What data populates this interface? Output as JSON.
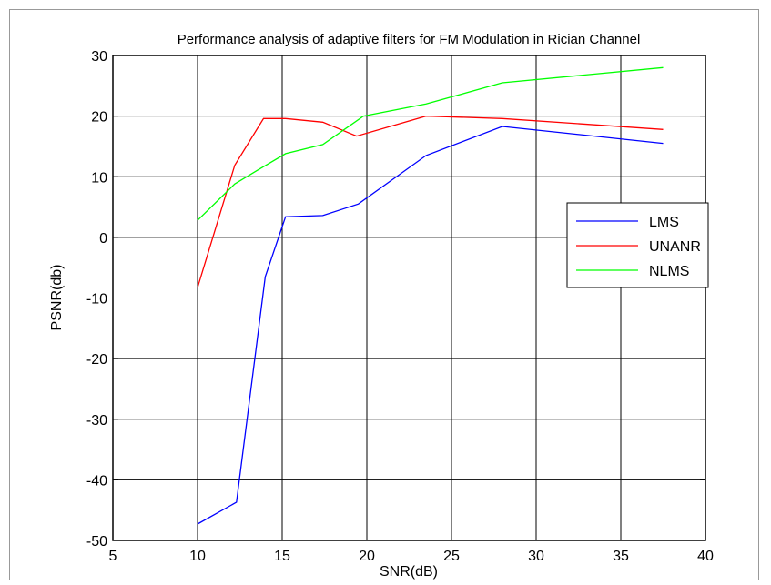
{
  "chart_data": {
    "type": "line",
    "title": "Performance analysis of adaptive filters for FM Modulation in Rician Channel",
    "xlabel": "SNR(dB)",
    "ylabel": "PSNR(db)",
    "xlim": [
      5,
      40
    ],
    "ylim": [
      -50,
      30
    ],
    "xticks": [
      5,
      10,
      15,
      20,
      25,
      30,
      35,
      40
    ],
    "yticks": [
      -50,
      -40,
      -30,
      -20,
      -10,
      0,
      10,
      20,
      30
    ],
    "grid": true,
    "legend_position": "right",
    "series": [
      {
        "name": "LMS",
        "color": "#0000ff",
        "x": [
          10,
          12.3,
          14,
          15.2,
          17.4,
          19.5,
          23.5,
          28,
          37.5
        ],
        "y": [
          -47.3,
          -43.7,
          -6.5,
          3.4,
          3.6,
          5.5,
          13.5,
          18.3,
          15.5
        ]
      },
      {
        "name": "UNANR",
        "color": "#ff0000",
        "x": [
          10,
          12.2,
          13.9,
          15.2,
          17.4,
          19.4,
          23.5,
          28,
          37.5
        ],
        "y": [
          -8.3,
          11.9,
          19.6,
          19.6,
          19.0,
          16.7,
          20.0,
          19.6,
          17.8
        ]
      },
      {
        "name": "NLMS",
        "color": "#00ff00",
        "x": [
          10,
          12.2,
          13.5,
          15.2,
          17.4,
          19.8,
          23.5,
          28,
          37.5
        ],
        "y": [
          2.8,
          8.8,
          11.0,
          13.8,
          15.3,
          20.0,
          22.0,
          25.5,
          28.0
        ]
      }
    ]
  }
}
